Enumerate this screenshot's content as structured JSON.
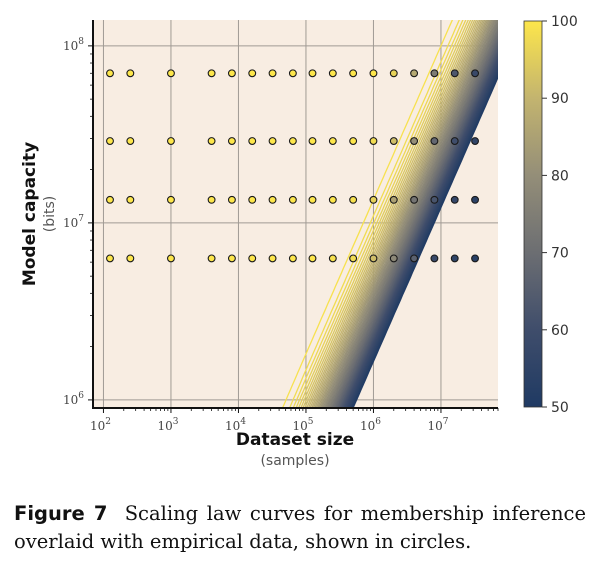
{
  "figure": {
    "caption_label": "Figure 7",
    "caption_text": "Scaling law curves for membership inference overlaid with empirical data, shown in circles."
  },
  "chart_data": {
    "type": "scatter",
    "xscale": "log",
    "yscale": "log",
    "xlabel": "Dataset size",
    "xlabel_sub": "(samples)",
    "ylabel": "Model capacity",
    "ylabel_sub": "(bits)",
    "xlim": [
      70,
      70000000
    ],
    "ylim": [
      900000,
      140000000
    ],
    "xticks": [
      {
        "value": 100,
        "base": "10",
        "exp": "2"
      },
      {
        "value": 1000,
        "base": "10",
        "exp": "3"
      },
      {
        "value": 10000,
        "base": "10",
        "exp": "4"
      },
      {
        "value": 100000,
        "base": "10",
        "exp": "5"
      },
      {
        "value": 1000000,
        "base": "10",
        "exp": "6"
      },
      {
        "value": 10000000,
        "base": "10",
        "exp": "7"
      }
    ],
    "yticks": [
      {
        "value": 1000000,
        "base": "10",
        "exp": "6"
      },
      {
        "value": 10000000,
        "base": "10",
        "exp": "7"
      },
      {
        "value": 100000000,
        "base": "10",
        "exp": "8"
      }
    ],
    "grid": true,
    "background_color": "#f8ede2",
    "colorbar": {
      "colormap": "cividis",
      "min": 50,
      "max": 100,
      "ticks": [
        50,
        60,
        70,
        80,
        90,
        100
      ],
      "color_stops": [
        "#1f3a63",
        "#3f4d6b",
        "#6c6e72",
        "#948e78",
        "#c3b46f",
        "#fde64b"
      ]
    },
    "scatter": {
      "x": [
        125,
        250,
        1000,
        4000,
        8000,
        16000,
        32000,
        64000,
        125000,
        250000,
        500000,
        1000000,
        2000000,
        4000000,
        8000000,
        16000000,
        32000000
      ],
      "y": [
        6300000,
        13500000,
        29000000,
        70000000
      ],
      "values": [
        [
          100,
          100,
          100,
          100,
          100,
          100,
          100,
          100,
          100,
          99,
          98,
          92,
          78,
          66,
          58,
          55,
          53
        ],
        [
          100,
          100,
          100,
          100,
          100,
          100,
          100,
          100,
          100,
          100,
          99,
          96,
          85,
          72,
          62,
          57,
          54
        ],
        [
          100,
          100,
          100,
          100,
          100,
          100,
          100,
          100,
          100,
          100,
          100,
          98,
          92,
          80,
          68,
          60,
          56
        ],
        [
          100,
          100,
          100,
          100,
          100,
          100,
          100,
          100,
          100,
          100,
          100,
          100,
          96,
          87,
          74,
          63,
          58
        ]
      ]
    },
    "contour_levels": [
      99,
      98,
      97,
      96,
      95,
      94,
      93,
      92,
      91,
      90,
      89,
      88,
      87,
      86,
      85,
      84,
      83,
      82,
      81,
      80,
      79,
      78,
      77,
      76,
      75,
      74,
      73,
      72,
      71,
      70,
      69,
      68,
      67,
      66,
      65,
      64,
      63,
      62,
      61,
      60,
      59,
      58,
      57,
      56,
      55,
      54,
      53,
      52,
      51
    ]
  }
}
